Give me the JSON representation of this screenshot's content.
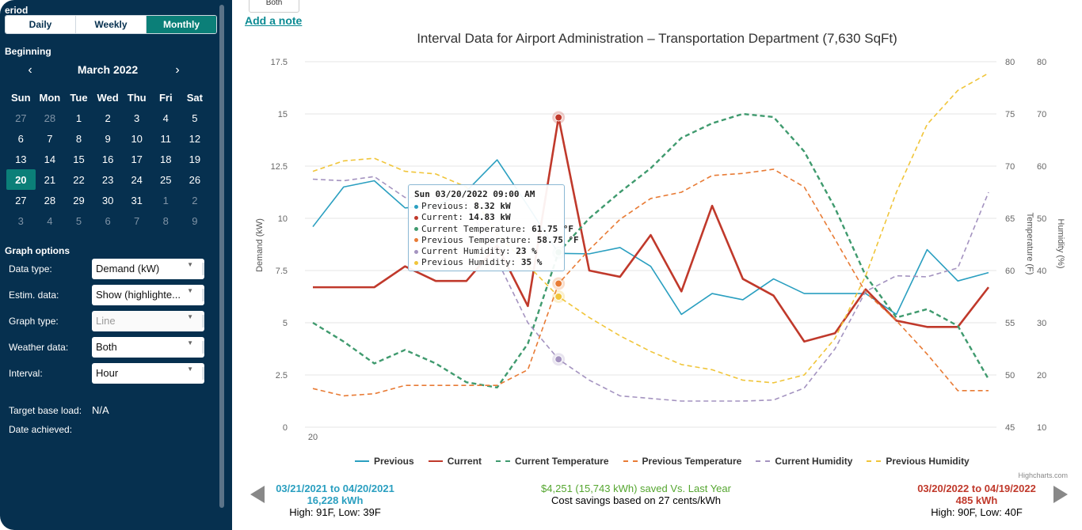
{
  "sidebar": {
    "period_label": "eriod",
    "period_tabs": [
      {
        "label": "Daily",
        "active": false
      },
      {
        "label": "Weekly",
        "active": false
      },
      {
        "label": "Monthly",
        "active": true
      }
    ],
    "beginning_label": "Beginning",
    "calendar": {
      "month": "March 2022",
      "prev": "‹",
      "next": "›",
      "weekdays": [
        "Sun",
        "Mon",
        "Tue",
        "Wed",
        "Thu",
        "Fri",
        "Sat"
      ],
      "weeks": [
        [
          {
            "d": "27",
            "muted": true
          },
          {
            "d": "28",
            "muted": true
          },
          {
            "d": "1"
          },
          {
            "d": "2"
          },
          {
            "d": "3"
          },
          {
            "d": "4"
          },
          {
            "d": "5"
          }
        ],
        [
          {
            "d": "6"
          },
          {
            "d": "7"
          },
          {
            "d": "8"
          },
          {
            "d": "9"
          },
          {
            "d": "10"
          },
          {
            "d": "11"
          },
          {
            "d": "12"
          }
        ],
        [
          {
            "d": "13"
          },
          {
            "d": "14"
          },
          {
            "d": "15"
          },
          {
            "d": "16"
          },
          {
            "d": "17"
          },
          {
            "d": "18"
          },
          {
            "d": "19"
          }
        ],
        [
          {
            "d": "20",
            "selected": true
          },
          {
            "d": "21"
          },
          {
            "d": "22"
          },
          {
            "d": "23"
          },
          {
            "d": "24"
          },
          {
            "d": "25"
          },
          {
            "d": "26"
          }
        ],
        [
          {
            "d": "27"
          },
          {
            "d": "28"
          },
          {
            "d": "29"
          },
          {
            "d": "30"
          },
          {
            "d": "31"
          },
          {
            "d": "1",
            "muted": true
          },
          {
            "d": "2",
            "muted": true
          }
        ],
        [
          {
            "d": "3",
            "muted": true
          },
          {
            "d": "4",
            "muted": true
          },
          {
            "d": "5",
            "muted": true
          },
          {
            "d": "6",
            "muted": true
          },
          {
            "d": "7",
            "muted": true
          },
          {
            "d": "8",
            "muted": true
          },
          {
            "d": "9",
            "muted": true
          }
        ]
      ]
    },
    "graph_options_label": "Graph options",
    "options": [
      {
        "label": "Data type:",
        "value": "Demand (kW)",
        "disabled": false
      },
      {
        "label": "Estim. data:",
        "value": "Show (highlighte...",
        "disabled": false
      },
      {
        "label": "Graph type:",
        "value": "Line",
        "disabled": true
      },
      {
        "label": "Weather data:",
        "value": "Both",
        "disabled": false
      },
      {
        "label": "Interval:",
        "value": "Hour",
        "disabled": false
      }
    ],
    "target_base_load_label": "Target base load:",
    "target_base_load_value": "N/A",
    "date_achieved_label": "Date achieved:"
  },
  "main": {
    "both_button": "Both",
    "add_note": "Add a note",
    "chart_title": "Interval Data for Airport Administration – Transportation Department (7,630 SqFt)",
    "credits": "Highcharts.com",
    "left_summary": {
      "range": "03/21/2021 to 04/20/2021",
      "kwh": "16,228 kWh",
      "weather": "High: 91F, Low: 39F"
    },
    "center_summary": {
      "savings": "$4,251 (15,743 kWh) saved Vs. Last Year",
      "note": "Cost savings based on 27 cents/kWh"
    },
    "right_summary": {
      "range": "03/20/2022 to 04/19/2022",
      "kwh": "485 kWh",
      "weather": "High: 90F, Low: 40F"
    }
  },
  "tooltip": {
    "header": "Sun 03/20/2022 09:00 AM",
    "rows": [
      {
        "label": "Previous: ",
        "value": "8.32 kW",
        "color": "#2a9fc0"
      },
      {
        "label": "Current: ",
        "value": "14.83 kW",
        "color": "#c0392b"
      },
      {
        "label": "Current Temperature: ",
        "value": "61.75 °F",
        "color": "#3f9a6e"
      },
      {
        "label": "Previous Temperature: ",
        "value": "58.75 °F",
        "color": "#e87b35"
      },
      {
        "label": "Current Humidity: ",
        "value": "23 %",
        "color": "#a493c0"
      },
      {
        "label": "Previous Humidity: ",
        "value": "35 %",
        "color": "#f0c53a"
      }
    ]
  },
  "colors": {
    "sidebar_bg": "#06304f",
    "accent": "#0b7f78",
    "previous": "#2a9fc0",
    "current": "#c0392b"
  },
  "chart_data": {
    "type": "line",
    "title": "Interval Data for Airport Administration – Transportation Department (7,630 SqFt)",
    "x": [
      0,
      1,
      2,
      3,
      4,
      5,
      6,
      7,
      8,
      9,
      10,
      11,
      12,
      13,
      14,
      15,
      16,
      17,
      18,
      19,
      20,
      21,
      22
    ],
    "x_tick_labels": [
      {
        "x": 0,
        "label": "20"
      }
    ],
    "axes": {
      "demand": {
        "label": "Demand (kW)",
        "min": 0,
        "max": 17.5,
        "ticks": [
          "0",
          "2.5",
          "5",
          "7.5",
          "10",
          "12.5",
          "15",
          "17.5"
        ]
      },
      "temperature": {
        "label": "Temperature (F)",
        "min": 45,
        "max": 80,
        "ticks": [
          "45",
          "50",
          "55",
          "60",
          "65",
          "70",
          "75",
          "80"
        ]
      },
      "humidity": {
        "label": "Humidity (%)",
        "min": 10,
        "max": 80,
        "ticks": [
          "10",
          "20",
          "30",
          "40",
          "50",
          "60",
          "70",
          "80"
        ]
      }
    },
    "highlight_index": 8,
    "series": [
      {
        "name": "Previous",
        "axis": "demand",
        "color": "#2a9fc0",
        "dash": false,
        "width": 1.6,
        "values": [
          9.6,
          11.5,
          11.8,
          10.5,
          10.6,
          11.3,
          12.8,
          10.6,
          8.32,
          8.3,
          8.6,
          7.7,
          5.4,
          6.4,
          6.1,
          7.1,
          6.4,
          6.4,
          6.4,
          5.4,
          8.5,
          7.0,
          7.4
        ]
      },
      {
        "name": "Current",
        "axis": "demand",
        "color": "#c0392b",
        "dash": false,
        "width": 2.6,
        "values": [
          6.7,
          6.7,
          6.7,
          7.7,
          7.0,
          7.0,
          8.7,
          5.8,
          14.83,
          7.5,
          7.2,
          9.2,
          6.5,
          10.6,
          7.1,
          6.3,
          4.1,
          4.5,
          6.6,
          5.1,
          4.8,
          4.8,
          6.7
        ]
      },
      {
        "name": "Current Temperature",
        "axis": "temperature",
        "color": "#3f9a6e",
        "dash": true,
        "width": 2.4,
        "values": [
          55.0,
          53.2,
          51.1,
          52.4,
          51.1,
          49.3,
          48.8,
          53.0,
          61.75,
          65.0,
          67.5,
          69.8,
          72.7,
          74.1,
          75.0,
          74.7,
          71.4,
          66.0,
          59.5,
          55.5,
          56.3,
          54.7,
          49.6
        ]
      },
      {
        "name": "Previous Temperature",
        "axis": "temperature",
        "color": "#e87b35",
        "dash": true,
        "width": 1.6,
        "values": [
          48.7,
          48.0,
          48.2,
          49.0,
          49.0,
          49.0,
          49.0,
          50.5,
          58.75,
          62.0,
          64.9,
          66.9,
          67.5,
          69.1,
          69.3,
          69.7,
          68.0,
          63.0,
          57.9,
          55.2,
          52.0,
          48.5,
          48.5
        ]
      },
      {
        "name": "Current Humidity",
        "axis": "humidity",
        "color": "#a493c0",
        "dash": true,
        "width": 1.6,
        "values": [
          57.5,
          57.2,
          58.0,
          54.0,
          54.0,
          53.0,
          42.0,
          30.0,
          23,
          19.0,
          16.0,
          15.5,
          15.0,
          15.0,
          15.0,
          15.2,
          17.5,
          25.0,
          36.0,
          39.0,
          38.8,
          40.5,
          55.0
        ]
      },
      {
        "name": "Previous Humidity",
        "axis": "humidity",
        "color": "#f0c53a",
        "dash": true,
        "width": 1.6,
        "values": [
          59.0,
          61.0,
          61.5,
          59.0,
          58.5,
          56.0,
          47.0,
          41.0,
          35,
          31.0,
          27.5,
          24.5,
          22.0,
          21.0,
          19.0,
          18.5,
          20.0,
          27.0,
          39.0,
          55.0,
          68.0,
          74.5,
          77.8
        ]
      }
    ],
    "legend": [
      "Previous",
      "Current",
      "Current Temperature",
      "Previous Temperature",
      "Current Humidity",
      "Previous Humidity"
    ],
    "legend_position": "bottom"
  }
}
